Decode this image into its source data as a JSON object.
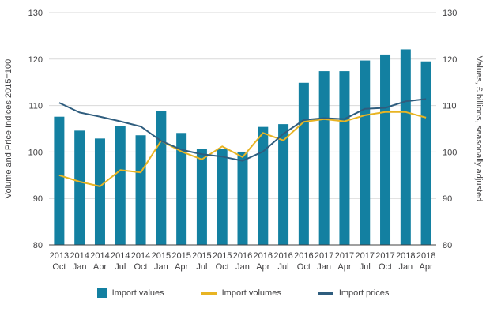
{
  "chart_data": {
    "type": "bar",
    "title": "",
    "ylabel_left": "Volume and Price Indices 2015=100",
    "ylabel_right": "Values, £ billions, seasonally adjusted",
    "ylim": [
      80,
      130
    ],
    "yticks": [
      80,
      90,
      100,
      110,
      120,
      130
    ],
    "grid": "horizontal",
    "legend_position": "bottom",
    "categories": [
      "2013 Oct",
      "2014 Jan",
      "2014 Apr",
      "2014 Jul",
      "2014 Oct",
      "2015 Jan",
      "2015 Apr",
      "2015 Jul",
      "2015 Oct",
      "2016 Jan",
      "2016 Apr",
      "2016 Jul",
      "2016 Oct",
      "2017 Jan",
      "2017 Apr",
      "2017 Jul",
      "2017 Oct",
      "2018 Jan",
      "2018 Apr"
    ],
    "series": [
      {
        "name": "Import values",
        "type": "bar",
        "color": "#1380A1",
        "values": [
          107.6,
          104.6,
          102.9,
          105.6,
          103.6,
          108.8,
          104.1,
          100.6,
          100.7,
          100.0,
          105.4,
          106.0,
          114.9,
          117.4,
          117.4,
          119.7,
          121.0,
          122.1,
          119.5
        ]
      },
      {
        "name": "Import volumes",
        "type": "line",
        "color": "#E8B423",
        "values": [
          95.0,
          93.6,
          92.6,
          96.1,
          95.6,
          102.4,
          100.1,
          98.4,
          101.2,
          98.9,
          104.1,
          102.5,
          106.5,
          107.1,
          106.6,
          107.9,
          108.6,
          108.6,
          107.4
        ]
      },
      {
        "name": "Import prices",
        "type": "line",
        "color": "#2F5D7E",
        "values": [
          110.6,
          108.5,
          107.6,
          106.6,
          105.5,
          102.4,
          100.5,
          99.5,
          99.0,
          98.1,
          100.1,
          103.9,
          106.9,
          107.3,
          107.1,
          109.3,
          109.5,
          110.9,
          111.4
        ]
      }
    ],
    "colors": {
      "grid": "#D9D9D9",
      "axis": "#414042",
      "text": "#414042"
    }
  }
}
